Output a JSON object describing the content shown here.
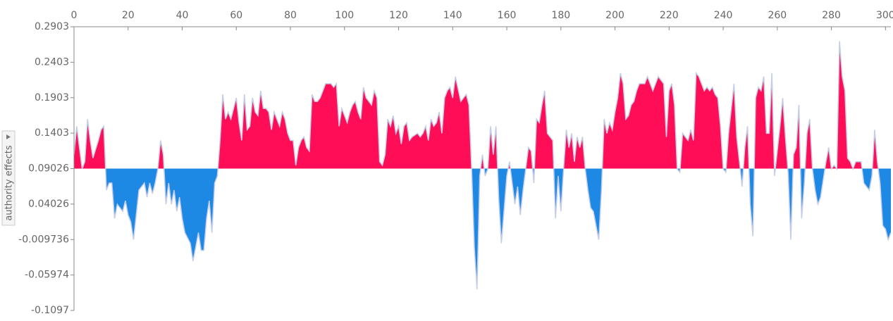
{
  "chart_data": {
    "type": "force-area",
    "y_label": "authority effects",
    "base_value": 0.09026,
    "above_color": "#ff0d57",
    "below_color": "#1e88e5",
    "line_color": "#c3cde8",
    "xlim": [
      0,
      302
    ],
    "xticks": [
      0,
      20,
      40,
      60,
      80,
      100,
      120,
      140,
      160,
      180,
      200,
      220,
      240,
      260,
      280,
      300
    ],
    "ylim": [
      -0.1097,
      0.2903
    ],
    "yticks": [
      0.2903,
      0.2403,
      0.1903,
      0.1403,
      0.09026,
      0.04026,
      -0.009736,
      -0.05974,
      -0.1097
    ],
    "x": [
      0,
      1,
      2,
      3,
      4,
      5,
      6,
      7,
      9,
      10,
      11,
      12,
      13,
      14,
      15,
      16,
      17,
      18,
      19,
      20,
      21,
      22,
      23,
      24,
      26,
      27,
      28,
      29,
      30,
      31,
      32,
      33,
      34,
      35,
      36,
      37,
      38,
      39,
      40,
      41,
      43,
      44,
      45,
      46,
      47,
      48,
      49,
      50,
      51,
      52,
      53,
      54,
      55,
      56,
      57,
      58,
      60,
      61,
      62,
      63,
      64,
      65,
      66,
      67,
      68,
      69,
      70,
      71,
      72,
      73,
      74,
      76,
      77,
      78,
      79,
      80,
      81,
      82,
      83,
      84,
      85,
      86,
      87,
      88,
      89,
      90,
      91,
      93,
      94,
      95,
      96,
      97,
      98,
      99,
      100,
      101,
      102,
      103,
      104,
      105,
      106,
      107,
      108,
      110,
      111,
      112,
      113,
      114,
      115,
      116,
      117,
      118,
      119,
      120,
      121,
      122,
      123,
      124,
      125,
      127,
      128,
      129,
      130,
      131,
      132,
      133,
      134,
      135,
      136,
      137,
      138,
      139,
      140,
      141,
      143,
      144,
      145,
      146,
      147,
      148,
      149,
      150,
      151,
      152,
      153,
      154,
      155,
      156,
      157,
      158,
      160,
      161,
      162,
      163,
      164,
      165,
      166,
      167,
      168,
      169,
      170,
      171,
      172,
      173,
      174,
      175,
      177,
      178,
      179,
      180,
      181,
      182,
      183,
      184,
      185,
      186,
      187,
      188,
      189,
      190,
      191,
      192,
      194,
      195,
      196,
      197,
      198,
      199,
      200,
      201,
      202,
      203,
      204,
      205,
      206,
      207,
      208,
      209,
      211,
      212,
      213,
      214,
      215,
      216,
      217,
      218,
      219,
      220,
      221,
      222,
      223,
      224,
      225,
      227,
      228,
      229,
      230,
      231,
      232,
      233,
      234,
      235,
      236,
      237,
      238,
      239,
      240,
      241,
      242,
      244,
      245,
      246,
      247,
      248,
      249,
      250,
      251,
      252,
      253,
      254,
      255,
      256,
      257,
      258,
      259,
      261,
      262,
      263,
      264,
      265,
      266,
      267,
      268,
      269,
      270,
      271,
      272,
      273,
      274,
      275,
      276,
      278,
      279,
      280,
      281,
      282,
      283,
      284,
      285,
      286,
      287,
      288,
      289,
      290,
      291,
      292,
      294,
      295,
      296,
      297,
      298,
      299,
      300,
      301,
      302
    ],
    "values": [
      0.11,
      0.15,
      0.12,
      0.09,
      0.1,
      0.16,
      0.13,
      0.105,
      0.13,
      0.145,
      0.15,
      0.06,
      0.07,
      0.07,
      0.02,
      0.04,
      0.035,
      0.03,
      0.045,
      0.025,
      0.015,
      -0.01,
      0.025,
      0.06,
      0.07,
      0.05,
      0.07,
      0.055,
      0.07,
      0.09,
      0.13,
      0.11,
      0.04,
      0.07,
      0.04,
      0.06,
      0.03,
      0.05,
      0.02,
      0.0,
      -0.015,
      -0.04,
      -0.02,
      0.0,
      -0.025,
      -0.025,
      0.02,
      0.045,
      0.0,
      0.07,
      0.08,
      0.13,
      0.195,
      0.16,
      0.17,
      0.16,
      0.19,
      0.155,
      0.13,
      0.195,
      0.145,
      0.15,
      0.19,
      0.17,
      0.165,
      0.2,
      0.175,
      0.175,
      0.17,
      0.145,
      0.17,
      0.15,
      0.17,
      0.16,
      0.14,
      0.13,
      0.13,
      0.095,
      0.12,
      0.13,
      0.135,
      0.12,
      0.115,
      0.195,
      0.185,
      0.185,
      0.19,
      0.21,
      0.21,
      0.21,
      0.205,
      0.21,
      0.15,
      0.175,
      0.165,
      0.155,
      0.17,
      0.18,
      0.185,
      0.17,
      0.16,
      0.205,
      0.19,
      0.18,
      0.2,
      0.19,
      0.1,
      0.095,
      0.11,
      0.16,
      0.15,
      0.165,
      0.14,
      0.15,
      0.125,
      0.15,
      0.155,
      0.13,
      0.135,
      0.14,
      0.135,
      0.14,
      0.15,
      0.13,
      0.16,
      0.15,
      0.155,
      0.17,
      0.14,
      0.19,
      0.2,
      0.205,
      0.19,
      0.22,
      0.185,
      0.19,
      0.195,
      0.18,
      0.09,
      -0.02,
      -0.08,
      0.08,
      0.11,
      0.08,
      0.09,
      0.15,
      0.11,
      0.15,
      0.05,
      -0.015,
      0.08,
      0.1,
      0.07,
      0.04,
      0.065,
      0.025,
      0.06,
      0.09,
      0.12,
      0.115,
      0.07,
      0.16,
      0.155,
      0.18,
      0.2,
      0.14,
      0.13,
      0.02,
      0.08,
      0.03,
      0.09,
      0.145,
      0.12,
      0.14,
      0.1,
      0.135,
      0.12,
      0.135,
      0.09,
      0.06,
      0.035,
      0.03,
      -0.01,
      0.06,
      0.16,
      0.14,
      0.155,
      0.145,
      0.17,
      0.19,
      0.225,
      0.21,
      0.16,
      0.165,
      0.18,
      0.185,
      0.2,
      0.21,
      0.21,
      0.22,
      0.21,
      0.2,
      0.21,
      0.22,
      0.215,
      0.21,
      0.135,
      0.2,
      0.21,
      0.18,
      0.09,
      0.085,
      0.14,
      0.13,
      0.145,
      0.13,
      0.225,
      0.22,
      0.21,
      0.2,
      0.205,
      0.2,
      0.205,
      0.195,
      0.19,
      0.15,
      0.09,
      0.085,
      0.14,
      0.21,
      0.135,
      0.1,
      0.065,
      0.12,
      0.15,
      0.04,
      -0.005,
      0.19,
      0.205,
      0.2,
      0.22,
      0.14,
      0.14,
      0.225,
      0.08,
      0.15,
      0.19,
      0.135,
      0.085,
      -0.01,
      0.11,
      0.12,
      0.18,
      0.02,
      0.07,
      0.14,
      0.16,
      0.09,
      0.06,
      0.04,
      0.05,
      0.1,
      0.12,
      0.09,
      0.095,
      0.09,
      0.27,
      0.22,
      0.2,
      0.105,
      0.1,
      0.09,
      0.1,
      0.1,
      0.1,
      0.07,
      0.06,
      0.08,
      0.145,
      0.1,
      0.07,
      0.01,
      0.005,
      -0.01,
      0.0
    ]
  }
}
